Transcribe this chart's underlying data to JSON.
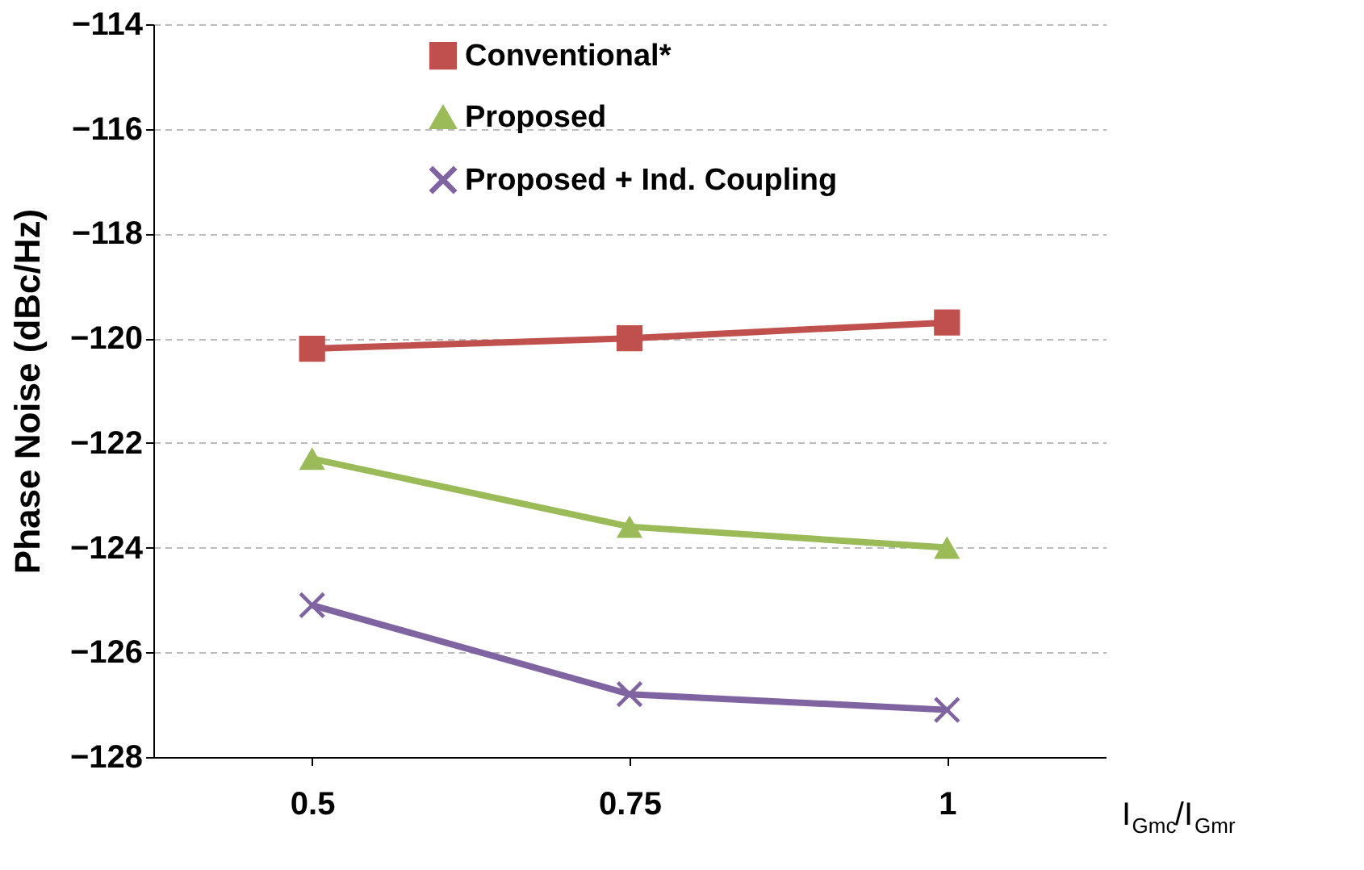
{
  "chart_data": {
    "type": "line",
    "categories": [
      "0.5",
      "0.75",
      "1"
    ],
    "xlabel": "I$_{Gmc}$/I$_{Gmr}$",
    "ylabel": "Phase Noise (dBc/Hz)",
    "series": [
      {
        "name": "Conventional*",
        "color": "#c0504d",
        "marker": "square",
        "values": [
          -120.2,
          -120.0,
          -119.7
        ]
      },
      {
        "name": "Proposed",
        "color": "#9bbb59",
        "marker": "triangle",
        "values": [
          -122.3,
          -123.6,
          -124.0
        ]
      },
      {
        "name": "Proposed + Ind. Coupling",
        "color": "#8064a2",
        "marker": "cross",
        "values": [
          -125.1,
          -126.8,
          -127.1
        ]
      }
    ],
    "ylim": [
      -128,
      -114
    ],
    "yticks": [
      -128,
      -126,
      -124,
      -122,
      -120,
      -118,
      -116,
      -114
    ],
    "grid": "y",
    "legend": "top",
    "line_style": "solid"
  }
}
